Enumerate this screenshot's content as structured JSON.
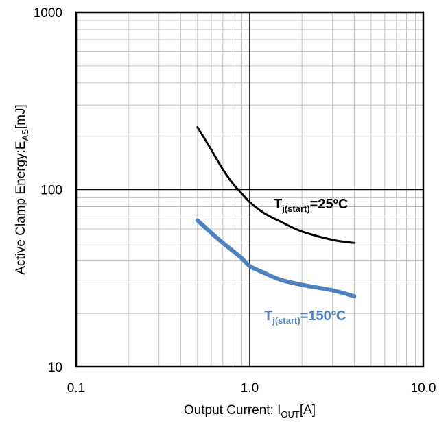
{
  "chart_data": {
    "type": "line",
    "title": "",
    "xlabel": {
      "main": "Output Current: I",
      "sub": "OUT",
      "suffix": "[A]"
    },
    "ylabel": {
      "main": "Active Clamp Energy:E",
      "sub": "AS",
      "suffix": "[mJ]"
    },
    "x_scale": "log",
    "y_scale": "log",
    "xlim": [
      0.1,
      10
    ],
    "ylim": [
      10,
      1000
    ],
    "x_ticks": [
      0.1,
      1,
      10
    ],
    "x_tick_labels": [
      "0.1",
      "1.0",
      "10.0"
    ],
    "y_ticks": [
      10,
      100,
      1000
    ],
    "y_tick_labels": [
      "10",
      "100",
      "1000"
    ],
    "grid": "on (major and minor)",
    "series": [
      {
        "label_main": "T",
        "label_sub": "j(start)",
        "label_suffix": "=25ºC",
        "color": "#000000",
        "x": [
          0.5,
          0.6,
          0.7,
          0.8,
          0.9,
          1.0,
          1.2,
          1.5,
          2.0,
          3.0,
          4.0
        ],
        "y": [
          225,
          168,
          130,
          108,
          95,
          85,
          74,
          66,
          58,
          52,
          50
        ]
      },
      {
        "label_main": "T",
        "label_sub": "j(start)",
        "label_suffix": "=150ºC",
        "color": "#4f81bd",
        "x": [
          0.5,
          0.6,
          0.7,
          0.8,
          0.9,
          1.0,
          1.2,
          1.5,
          2.0,
          3.0,
          4.0
        ],
        "y": [
          67,
          57,
          50,
          45,
          41,
          37,
          34,
          31,
          29,
          27,
          25
        ]
      }
    ]
  }
}
